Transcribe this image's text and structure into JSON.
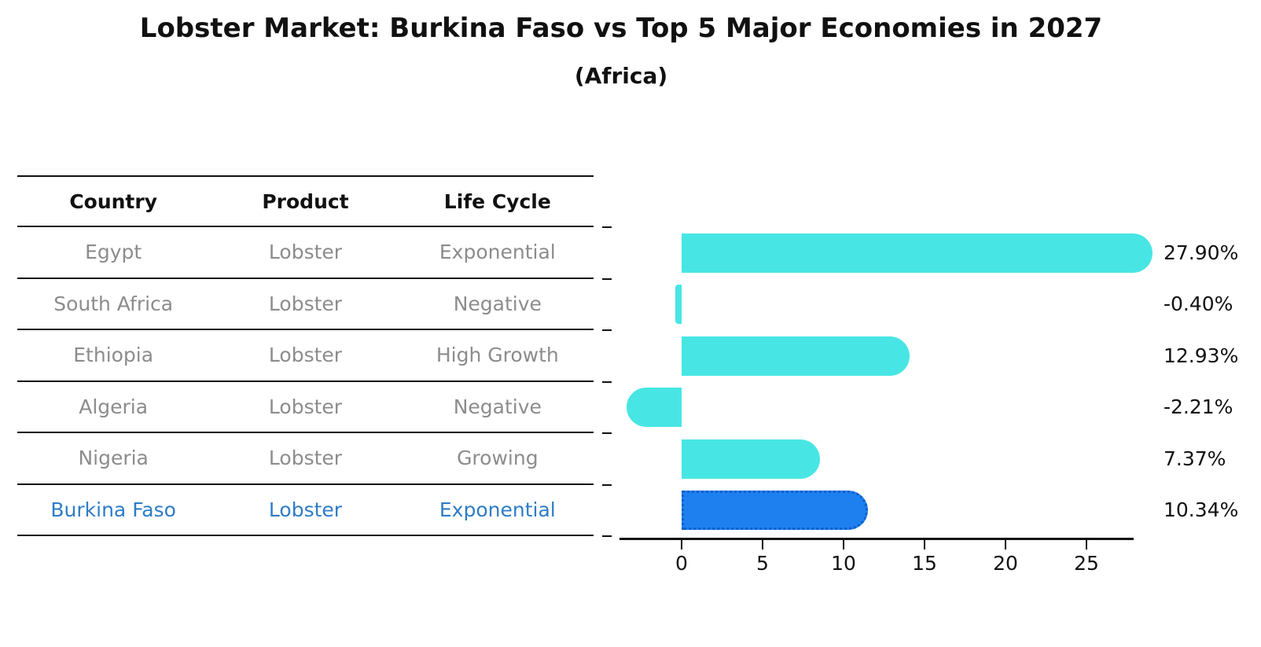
{
  "title": "Lobster Market: Burkina Faso vs Top 5 Major Economies in 2027",
  "subtitle": "(Africa)",
  "colors": {
    "bar_fill": "#47e6e4",
    "highlight_bar_fill": "#1d80ee",
    "highlight_bar_border": "#0d5ec9",
    "row_text": "#8c8c8c",
    "highlight_text": "#2e7cc7",
    "axis": "#111111",
    "title_text": "#111111"
  },
  "table": {
    "headers": [
      "Country",
      "Product",
      "Life Cycle"
    ],
    "rows": [
      {
        "country": "Egypt",
        "product": "Lobster",
        "life_cycle": "Exponential",
        "highlight": false
      },
      {
        "country": "South Africa",
        "product": "Lobster",
        "life_cycle": "Negative",
        "highlight": false
      },
      {
        "country": "Ethiopia",
        "product": "Lobster",
        "life_cycle": "High Growth",
        "highlight": false
      },
      {
        "country": "Algeria",
        "product": "Lobster",
        "life_cycle": "Negative",
        "highlight": false
      },
      {
        "country": "Nigeria",
        "product": "Lobster",
        "life_cycle": "Growing",
        "highlight": false
      },
      {
        "country": "Burkina Faso",
        "product": "Lobster",
        "life_cycle": "Exponential",
        "highlight": true
      }
    ]
  },
  "chart_data": {
    "type": "bar",
    "orientation": "horizontal",
    "categories": [
      "Egypt",
      "South Africa",
      "Ethiopia",
      "Algeria",
      "Nigeria",
      "Burkina Faso"
    ],
    "values": [
      27.9,
      -0.4,
      12.93,
      -2.21,
      7.37,
      10.34
    ],
    "value_labels": [
      "27.90%",
      "-0.40%",
      "12.93%",
      "-2.21%",
      "7.37%",
      "10.34%"
    ],
    "highlight_index": 5,
    "xticks": [
      "0",
      "5",
      "10",
      "15",
      "20",
      "25"
    ],
    "xtick_values": [
      0,
      5,
      10,
      15,
      20,
      25
    ],
    "xlim": [
      -3.8,
      27.9
    ],
    "grid": false,
    "legend": null,
    "xlabel": "",
    "ylabel": ""
  }
}
